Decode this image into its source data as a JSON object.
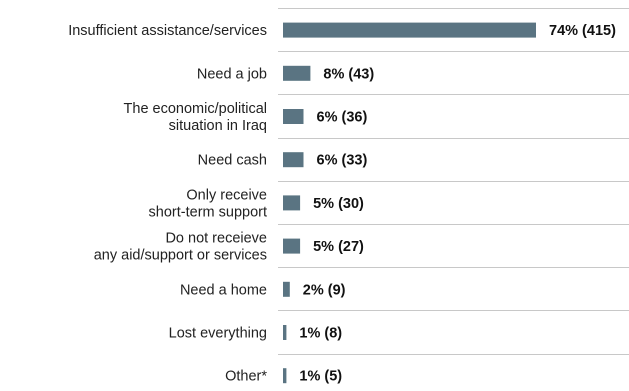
{
  "chart_data": {
    "type": "bar",
    "orientation": "horizontal",
    "title": "",
    "xlabel": "",
    "ylabel": "",
    "categories": [
      [
        "Insufficient assistance/services"
      ],
      [
        "Need a job"
      ],
      [
        "The economic/political",
        "situation in Iraq"
      ],
      [
        "Need cash"
      ],
      [
        "Only receive",
        "short-term support"
      ],
      [
        "Do not receieve",
        "any aid/support or services"
      ],
      [
        "Need a home"
      ],
      [
        "Lost everything"
      ],
      [
        "Other*"
      ]
    ],
    "values": [
      74,
      8,
      6,
      6,
      5,
      5,
      2,
      1,
      1
    ],
    "data_labels": [
      "74% (415)",
      "8% (43)",
      "6% (36)",
      "6% (33)",
      "5% (30)",
      "5% (27)",
      "2% (9)",
      "1% (8)",
      "1% (5)"
    ],
    "xlim": [
      0,
      100
    ],
    "grid": "horizontal row separators",
    "legend": "none",
    "colors": {
      "bar": "#5a7482",
      "separator": "#c8c8c8",
      "text": "#222222"
    }
  }
}
